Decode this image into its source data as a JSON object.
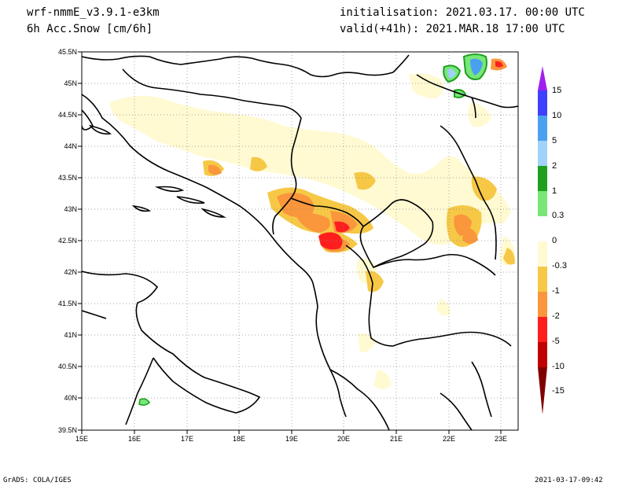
{
  "header": {
    "model": "wrf-nmmE_v3.9.1-e3km",
    "variable": "6h Acc.Snow [cm/6h]",
    "init": "initialisation: 2021.03.17.  00:00 UTC",
    "valid": "valid(+41h): 2021.MAR.18 17:00 UTC"
  },
  "footer": {
    "left": "GrADS: COLA/IGES",
    "right": "2021-03-17-09:42"
  },
  "axes": {
    "lat_labels": [
      "45.5N",
      "45N",
      "44.5N",
      "44N",
      "43.5N",
      "43N",
      "42.5N",
      "42N",
      "41.5N",
      "41N",
      "40.5N",
      "40N",
      "39.5N"
    ],
    "lon_labels": [
      "15E",
      "16E",
      "17E",
      "18E",
      "19E",
      "20E",
      "21E",
      "22E",
      "23E"
    ]
  },
  "colorbar": {
    "labels": [
      "15",
      "10",
      "5",
      "2",
      "1",
      "0.3",
      "0",
      "-0.3",
      "-1",
      "-2",
      "-5",
      "-10",
      "-15"
    ],
    "colors": [
      "#a020f0",
      "#4040ff",
      "#4aa0f0",
      "#a0d2fa",
      "#1ea01e",
      "#78e678",
      "#ffffff",
      "#fffad2",
      "#f6c846",
      "#fa963c",
      "#ff1e1e",
      "#c00000",
      "#800000"
    ]
  }
}
